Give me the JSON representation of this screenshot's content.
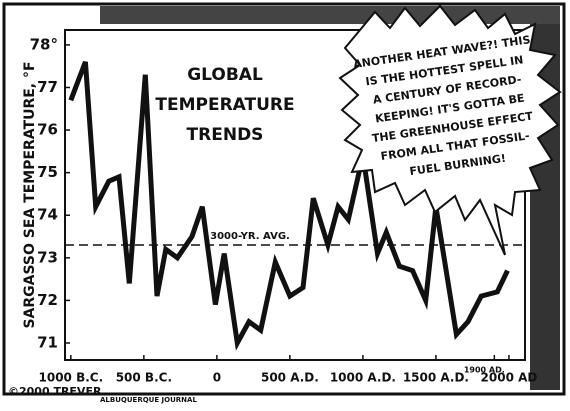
{
  "chart_data": {
    "type": "line",
    "title": [
      "GLOBAL",
      "TEMPERATURE",
      "TRENDS"
    ],
    "y_label": "SARGASSO SEA TEMPERATURE, °F",
    "x": [
      -1000,
      -900,
      -830,
      -740,
      -670,
      -600,
      -490,
      -410,
      -350,
      -270,
      -170,
      -100,
      -10,
      50,
      140,
      220,
      300,
      400,
      500,
      590,
      660,
      760,
      830,
      900,
      1000,
      1100,
      1160,
      1250,
      1340,
      1430,
      1500,
      1640,
      1720,
      1810,
      1920,
      1990
    ],
    "values": [
      76.7,
      77.6,
      74.2,
      74.8,
      74.9,
      72.4,
      77.3,
      72.1,
      73.2,
      73.0,
      73.5,
      74.2,
      71.9,
      73.1,
      71.0,
      71.5,
      71.3,
      72.9,
      72.1,
      72.3,
      74.4,
      73.3,
      74.2,
      73.9,
      75.4,
      73.1,
      73.6,
      72.8,
      72.7,
      72.0,
      74.2,
      71.2,
      71.5,
      72.1,
      72.2,
      72.7
    ],
    "color": "#111111",
    "xlim": [
      -1040,
      2110
    ],
    "ylim": [
      70.6,
      78.35
    ],
    "xticks": [
      {
        "value": -1000,
        "label": "1000 B.C."
      },
      {
        "value": -500,
        "label": "500 B.C."
      },
      0,
      {
        "value": 500,
        "label": "500 A.D."
      },
      {
        "value": 1000,
        "label": "1000 A.D."
      },
      {
        "value": 1500,
        "label": "1500 A.D."
      },
      {
        "value": 1900,
        "label": "1900 AD."
      },
      {
        "value": 2000,
        "label": "2000 AD"
      }
    ],
    "yticks": [
      71,
      72,
      73,
      74,
      75,
      76,
      77,
      {
        "value": 78,
        "label": "78°"
      }
    ],
    "reference_line": {
      "value": 73.3,
      "label": "3000-YR. AVG."
    },
    "speech_bubble": [
      "ANOTHER HEAT WAVE?! THIS",
      "IS THE HOTTEST SPELL IN",
      "A CENTURY OF RECORD-",
      "KEEPING! IT'S GOTTA BE",
      "THE GREENHOUSE EFFECT",
      "FROM ALL THAT FOSSIL-",
      "FUEL BURNING!"
    ],
    "credit": [
      "©2000 TREVER",
      "ALBUQUERQUE JOURNAL"
    ]
  }
}
